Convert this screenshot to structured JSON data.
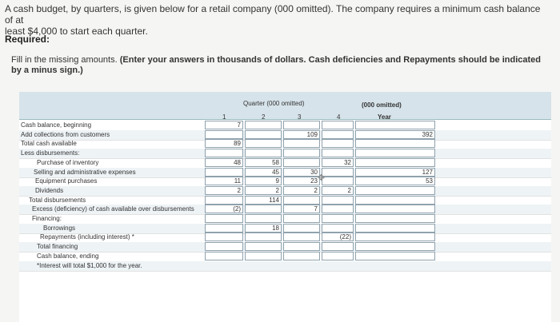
{
  "intro": {
    "line1": "A cash budget, by quarters, is given below for a retail company (000 omitted). The company requires a minimum cash balance of at",
    "line2": "least $4,000 to start each quarter."
  },
  "required_label": "Required:",
  "instructions": {
    "plain": "Fill in the missing amounts.",
    "bold": "(Enter your answers in thousands of dollars. Cash deficiencies and Repayments should be indicated by a minus sign.)"
  },
  "table": {
    "header_group": "Quarter (000 omitted)",
    "quarters": [
      "1",
      "2",
      "3",
      "4"
    ],
    "year_group": "(000 omitted)",
    "year": "Year",
    "currency_symbol": "$",
    "rows": [
      {
        "label": "Cash balance, beginning",
        "values": [
          "7",
          "",
          "",
          "",
          ""
        ]
      },
      {
        "label": "Add collections from customers",
        "values": [
          "",
          "",
          "109",
          "",
          "392"
        ]
      },
      {
        "label": "Total cash available",
        "values": [
          "89",
          "",
          "",
          "",
          ""
        ]
      },
      {
        "label": "Less disbursements:",
        "values": [
          "",
          "",
          "",
          "",
          ""
        ]
      },
      {
        "label": "Purchase of inventory",
        "values": [
          "48",
          "58",
          "",
          "32",
          ""
        ]
      },
      {
        "label": "Selling and administrative expenses",
        "values": [
          "",
          "45",
          "30",
          "",
          "127"
        ]
      },
      {
        "label": "Equipment purchases",
        "values": [
          "11",
          "9",
          "23",
          "",
          "53"
        ]
      },
      {
        "label": "Dividends",
        "values": [
          "2",
          "2",
          "2",
          "2",
          ""
        ]
      },
      {
        "label": "Total disbursements",
        "values": [
          "",
          "114",
          "",
          "",
          ""
        ]
      },
      {
        "label": "Excess (deficiency) of cash available over disbursements",
        "values": [
          "(2)",
          "",
          "7",
          "",
          ""
        ]
      },
      {
        "label": "Financing:",
        "values": [
          "",
          "",
          "",
          "",
          ""
        ]
      },
      {
        "label": "Borrowings",
        "values": [
          "",
          "18",
          "",
          "",
          ""
        ]
      },
      {
        "label": "Repayments (including interest) *",
        "values": [
          "",
          "",
          "",
          "(22)",
          ""
        ]
      },
      {
        "label": "Total financing",
        "values": [
          "",
          "",
          "",
          "",
          ""
        ]
      },
      {
        "label": "Cash balance, ending",
        "values": [
          "",
          "",
          "",
          "",
          ""
        ]
      },
      {
        "label": "*Interest will total $1,000 for the year.",
        "values": [
          "",
          "",
          "",
          "",
          ""
        ]
      }
    ]
  }
}
